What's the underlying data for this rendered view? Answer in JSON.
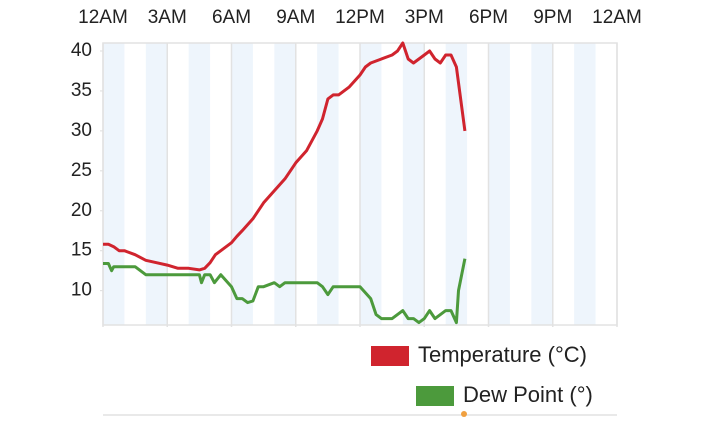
{
  "chart_data": {
    "type": "line",
    "xlim": [
      0,
      24
    ],
    "ylim": [
      5.7,
      41
    ],
    "xticks": [
      {
        "value": 0,
        "label": "12AM"
      },
      {
        "value": 3,
        "label": "3AM"
      },
      {
        "value": 6,
        "label": "6AM"
      },
      {
        "value": 9,
        "label": "9AM"
      },
      {
        "value": 12,
        "label": "12PM"
      },
      {
        "value": 15,
        "label": "3PM"
      },
      {
        "value": 18,
        "label": "6PM"
      },
      {
        "value": 21,
        "label": "9PM"
      },
      {
        "value": 24,
        "label": "12AM"
      }
    ],
    "yticks": [
      10,
      15,
      20,
      25,
      30,
      35,
      40
    ],
    "grid": true,
    "legend": "bottom-right",
    "series": [
      {
        "name": "Temperature (°C)",
        "color": "#d0242e",
        "x": [
          0,
          0.25,
          0.5,
          0.75,
          1,
          1.5,
          2,
          2.5,
          3,
          3.5,
          4,
          4.5,
          4.75,
          5,
          5.25,
          5.5,
          6,
          6.25,
          6.5,
          7,
          7.5,
          8,
          8.5,
          9,
          9.5,
          10,
          10.25,
          10.5,
          10.75,
          11,
          11.5,
          12,
          12.25,
          12.5,
          13,
          13.5,
          13.75,
          14,
          14.25,
          14.5,
          15,
          15.25,
          15.5,
          15.75,
          16,
          16.25,
          16.5,
          16.9
        ],
        "values": [
          15.8,
          15.8,
          15.5,
          15,
          15,
          14.5,
          13.8,
          13.5,
          13.2,
          12.8,
          12.8,
          12.6,
          12.8,
          13.5,
          14.5,
          15,
          16,
          16.8,
          17.5,
          19,
          21,
          22.5,
          24,
          26,
          27.5,
          30,
          31.5,
          34,
          34.5,
          34.5,
          35.5,
          37,
          38,
          38.5,
          39,
          39.5,
          40,
          41,
          39,
          38.5,
          39.5,
          40,
          39,
          38.5,
          39.5,
          39.5,
          38,
          30
        ]
      },
      {
        "name": "Dew Point (°)",
        "color": "#4c9a3c",
        "x": [
          0,
          0.25,
          0.4,
          0.5,
          1,
          1.5,
          2,
          3,
          4,
          4.5,
          4.6,
          4.75,
          5,
          5.2,
          5.5,
          6,
          6.25,
          6.5,
          6.75,
          7,
          7.25,
          7.5,
          8,
          8.25,
          8.5,
          9,
          9.5,
          10,
          10.25,
          10.5,
          10.75,
          11,
          11.5,
          12,
          12.5,
          12.75,
          13,
          13.5,
          14,
          14.25,
          14.5,
          14.75,
          15,
          15.25,
          15.5,
          16,
          16.25,
          16.5,
          16.6,
          16.9
        ],
        "values": [
          13.4,
          13.4,
          12.5,
          13,
          13,
          13,
          12,
          12,
          12,
          12,
          11,
          12,
          12,
          11,
          12,
          10.5,
          9,
          9,
          8.5,
          8.7,
          10.5,
          10.5,
          11,
          10.5,
          11,
          11,
          11,
          11,
          10.5,
          9.5,
          10.5,
          10.5,
          10.5,
          10.5,
          9,
          7,
          6.5,
          6.5,
          7.5,
          6.5,
          6.5,
          6,
          6.5,
          7.5,
          6.5,
          7.5,
          7.5,
          6,
          10,
          14
        ]
      }
    ]
  }
}
